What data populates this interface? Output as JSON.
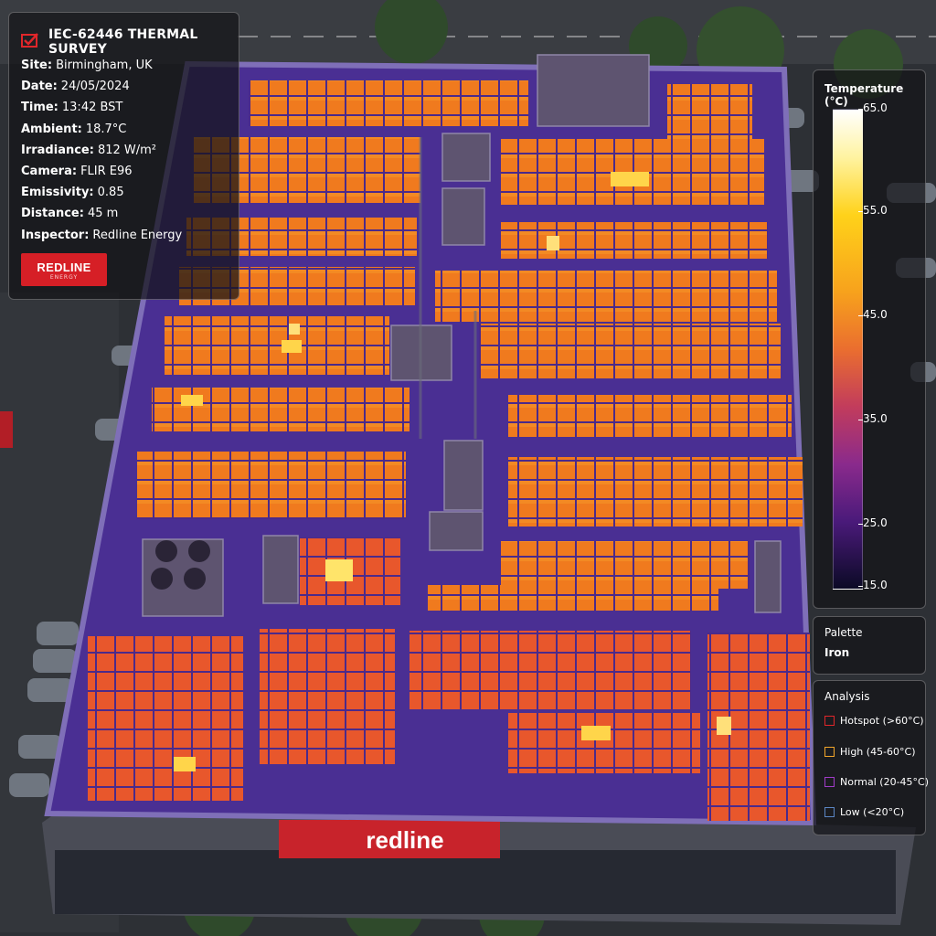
{
  "survey": {
    "title": "IEC-62446 THERMAL SURVEY",
    "fields": [
      {
        "label": "Site:",
        "value": "Birmingham, UK"
      },
      {
        "label": "Date:",
        "value": "24/05/2024"
      },
      {
        "label": "Time:",
        "value": "13:42 BST"
      },
      {
        "label": "Ambient:",
        "value": "18.7°C"
      },
      {
        "label": "Irradiance:",
        "value": "812 W/m²"
      },
      {
        "label": "Camera:",
        "value": "FLIR E96"
      },
      {
        "label": "Emissivity:",
        "value": "0.85"
      },
      {
        "label": "Distance:",
        "value": "45 m"
      },
      {
        "label": "Inspector:",
        "value": "Redline Energy"
      }
    ],
    "logo_text": "REDLINE",
    "logo_subtext": "ENERGY",
    "icon": "thermal-camera-icon"
  },
  "scale": {
    "title": "Temperature (°C)",
    "ticks": [
      "65.0",
      "55.0",
      "45.0",
      "35.0",
      "25.0",
      "15.0"
    ],
    "min": 15.0,
    "max": 65.0
  },
  "palette": {
    "label": "Palette",
    "value": "Iron"
  },
  "analysis": {
    "label": "Analysis",
    "items": [
      {
        "label": "Hotspot (>60°C)",
        "color": "#e0262a"
      },
      {
        "label": "High (45-60°C)",
        "color": "#f2a52a"
      },
      {
        "label": "Normal (20-45°C)",
        "color": "#a13cc9"
      },
      {
        "label": "Low (<20°C)",
        "color": "#5b86c4"
      }
    ]
  },
  "building_sign": "redline",
  "colors": {
    "panel_orange": "#f07a1e",
    "roof_purple": "#4a2f93",
    "brand_red": "#d61f26"
  }
}
